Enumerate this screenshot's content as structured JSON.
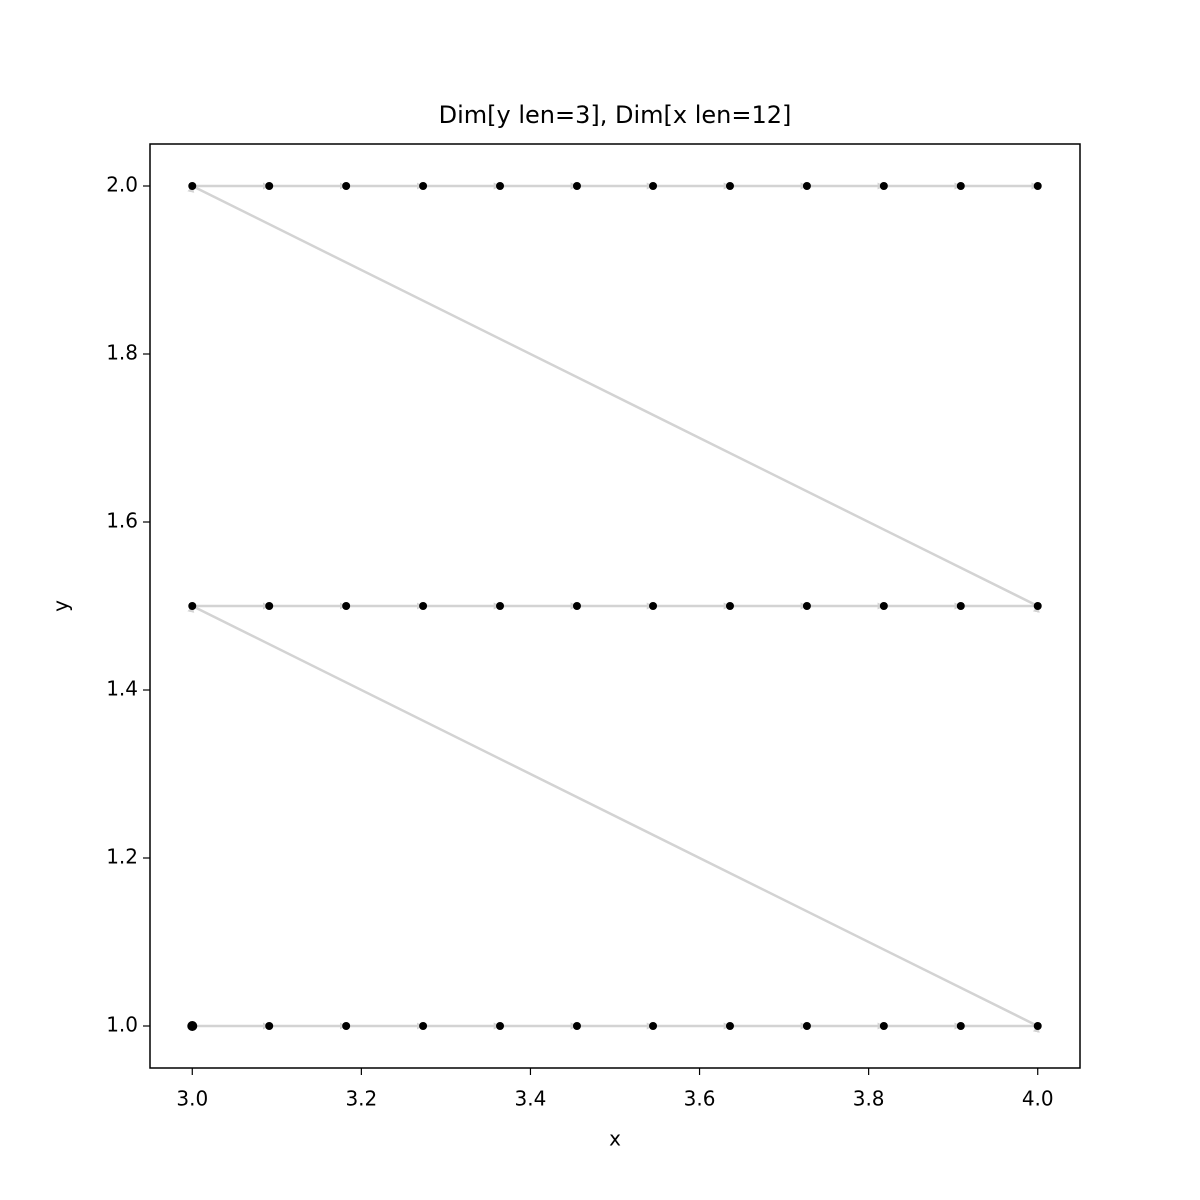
{
  "chart_data": {
    "type": "scatter",
    "title": "Dim[y len=3], Dim[x len=12]",
    "x_label": "x",
    "y_label": "y",
    "x": [
      3.0,
      3.091,
      3.182,
      3.273,
      3.364,
      3.455,
      3.545,
      3.636,
      3.727,
      3.818,
      3.909,
      4.0,
      3.0,
      3.091,
      3.182,
      3.273,
      3.364,
      3.455,
      3.545,
      3.636,
      3.727,
      3.818,
      3.909,
      4.0,
      3.0,
      3.091,
      3.182,
      3.273,
      3.364,
      3.455,
      3.545,
      3.636,
      3.727,
      3.818,
      3.909,
      4.0
    ],
    "y": [
      1.0,
      1.0,
      1.0,
      1.0,
      1.0,
      1.0,
      1.0,
      1.0,
      1.0,
      1.0,
      1.0,
      1.0,
      1.5,
      1.5,
      1.5,
      1.5,
      1.5,
      1.5,
      1.5,
      1.5,
      1.5,
      1.5,
      1.5,
      1.5,
      2.0,
      2.0,
      2.0,
      2.0,
      2.0,
      2.0,
      2.0,
      2.0,
      2.0,
      2.0,
      2.0,
      2.0
    ],
    "color": "#000000",
    "path_color": "#d3d3d3",
    "xlim": [
      2.95,
      4.05
    ],
    "ylim": [
      0.95,
      2.05
    ],
    "xticks": [
      {
        "value": 3.0,
        "label": "3.0"
      },
      3.2,
      3.4,
      3.6,
      3.8,
      {
        "value": 4.0,
        "label": "4.0"
      }
    ],
    "yticks": [
      {
        "value": 1.0,
        "label": "1.0"
      },
      1.2,
      1.4,
      1.6,
      1.8,
      {
        "value": 2.0,
        "label": "2.0"
      }
    ],
    "grid": false
  }
}
